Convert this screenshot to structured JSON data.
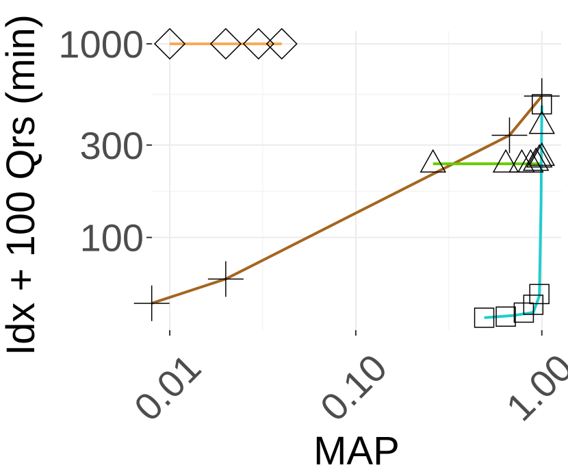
{
  "chart_data": {
    "type": "scatter",
    "x_label": "MAP",
    "y_label": "Idx + 100 Qrs (min)",
    "log_x": true,
    "log_y": true,
    "grid": true,
    "xlim": [
      0.00802,
      1.27
    ],
    "ylim": [
      33.2,
      1167
    ],
    "xticks": [
      {
        "value": 0.01,
        "label": "0.01"
      },
      {
        "value": 0.1,
        "label": "0.10"
      },
      {
        "value": 1,
        "label": "1.00"
      }
    ],
    "yticks": [
      100,
      300,
      1000
    ],
    "xminor": [
      0.0316,
      0.316
    ],
    "yminor": [
      173.2,
      547.7
    ],
    "series": [
      {
        "color": "#f7ab58",
        "marker": "diamond",
        "x": [
          0.01,
          0.02,
          0.03,
          0.04
        ],
        "y": [
          1000,
          1000,
          1000,
          1000
        ],
        "fit_x": [
          0.01,
          0.04
        ],
        "fit_y": [
          1000,
          1000
        ]
      },
      {
        "color": "#a5651f",
        "marker": "plus",
        "x": [
          0.008,
          0.02,
          0.67,
          1.0
        ],
        "y": [
          45.7,
          61,
          337,
          537
        ],
        "fit_x": [
          0.008,
          0.02,
          0.67,
          1.0
        ],
        "fit_y": [
          45.7,
          61,
          337,
          537
        ]
      },
      {
        "color": "#66cc00",
        "marker": "triangle",
        "x": [
          0.26,
          0.64,
          0.78,
          0.87,
          0.93,
          0.97,
          1.0,
          1.0
        ],
        "y": [
          240,
          240,
          240,
          240,
          245,
          255,
          260,
          380
        ],
        "fit_x": [
          0.26,
          1.0
        ],
        "fit_y": [
          240,
          240
        ]
      },
      {
        "color": "#1fcdcd",
        "marker": "square",
        "x": [
          0.49,
          0.64,
          0.8,
          0.9,
          0.97,
          1.0
        ],
        "y": [
          38.5,
          39,
          40.9,
          44.9,
          51,
          487
        ],
        "fit_x": [
          0.49,
          0.7,
          0.9,
          0.97,
          0.99,
          1.0
        ],
        "fit_y": [
          38.5,
          39.5,
          41,
          50,
          150,
          480
        ]
      }
    ]
  }
}
